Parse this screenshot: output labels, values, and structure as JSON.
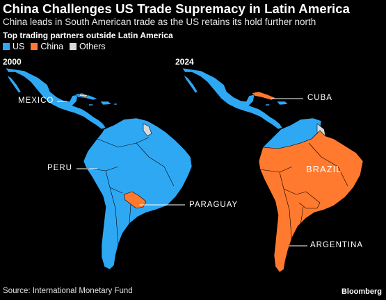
{
  "title": "China Challenges US Trade Supremacy in Latin America",
  "subtitle": "China leads in South American trade as the US retains its hold further north",
  "legend": {
    "title": "Top trading partners outside Latin America",
    "items": [
      {
        "label": "US",
        "color": "#2fa8f4"
      },
      {
        "label": "China",
        "color": "#ff7a2f"
      },
      {
        "label": "Others",
        "color": "#d9d9d9"
      }
    ]
  },
  "maps": [
    {
      "year": "2000",
      "labels": {
        "mexico": "MEXICO",
        "peru": "PERU",
        "paraguay": "PARAGUAY"
      }
    },
    {
      "year": "2024",
      "labels": {
        "cuba": "CUBA",
        "brazil": "BRAZIL",
        "argentina": "ARGENTINA"
      }
    }
  ],
  "source": "Source: International Monetary Fund",
  "brand": "Bloomberg"
}
